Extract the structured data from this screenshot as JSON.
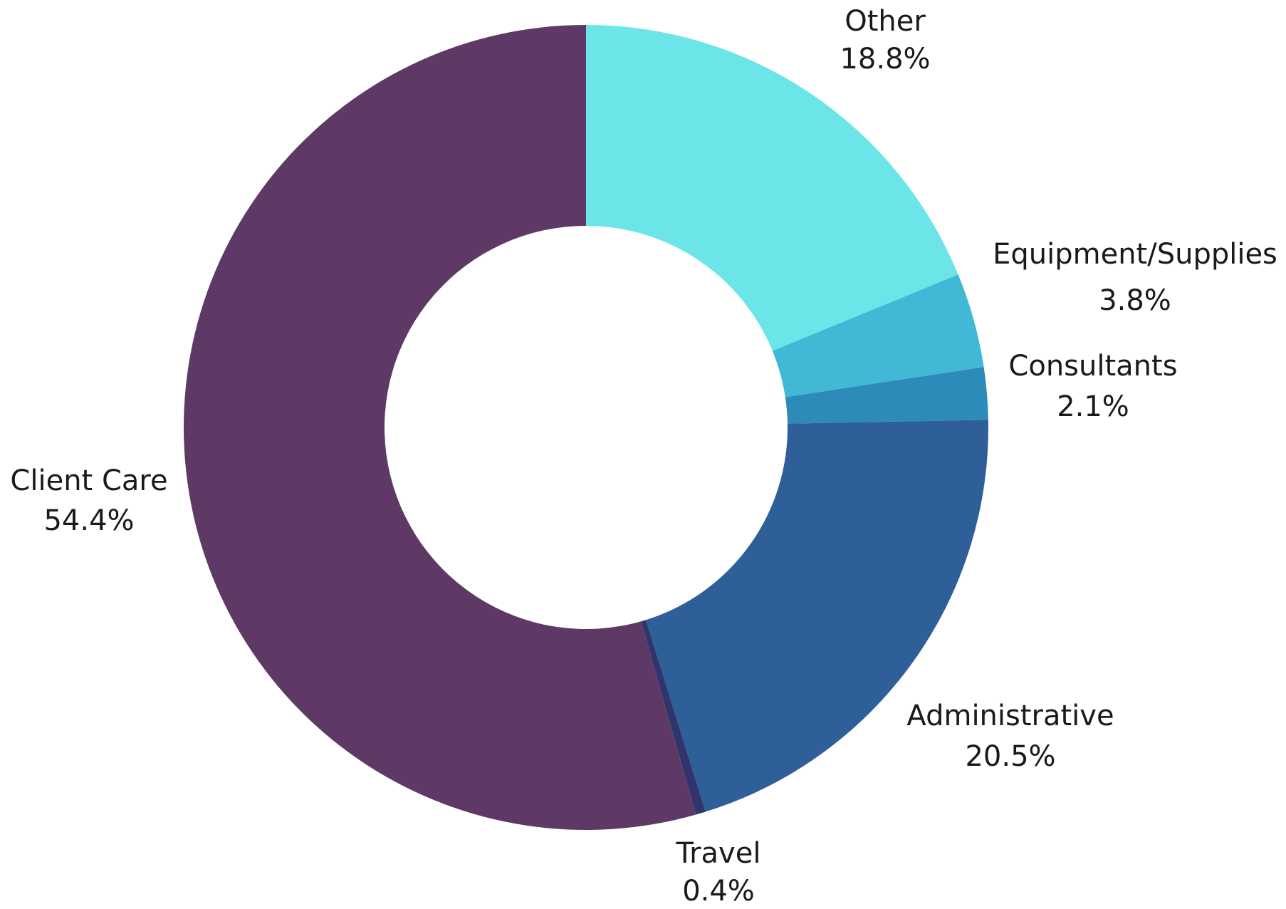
{
  "chart_data": {
    "type": "pie",
    "variant": "donut",
    "title": "",
    "categories": [
      "Other",
      "Equipment/Supplies",
      "Consultants",
      "Administrative",
      "Travel",
      "Client Care"
    ],
    "values": [
      18.8,
      3.8,
      2.1,
      20.5,
      0.4,
      54.4
    ],
    "value_labels": [
      "18.8%",
      "3.8%",
      "2.1%",
      "20.5%",
      "0.4%",
      "54.4%"
    ],
    "unit": "%",
    "colors": [
      "#6ce5e8",
      "#41b8d5",
      "#2d8bba",
      "#2f5f98",
      "#31356e",
      "#5e3966"
    ],
    "start_angle_deg": 0,
    "direction": "clockwise",
    "legend": "none",
    "labels_position": "outside"
  }
}
